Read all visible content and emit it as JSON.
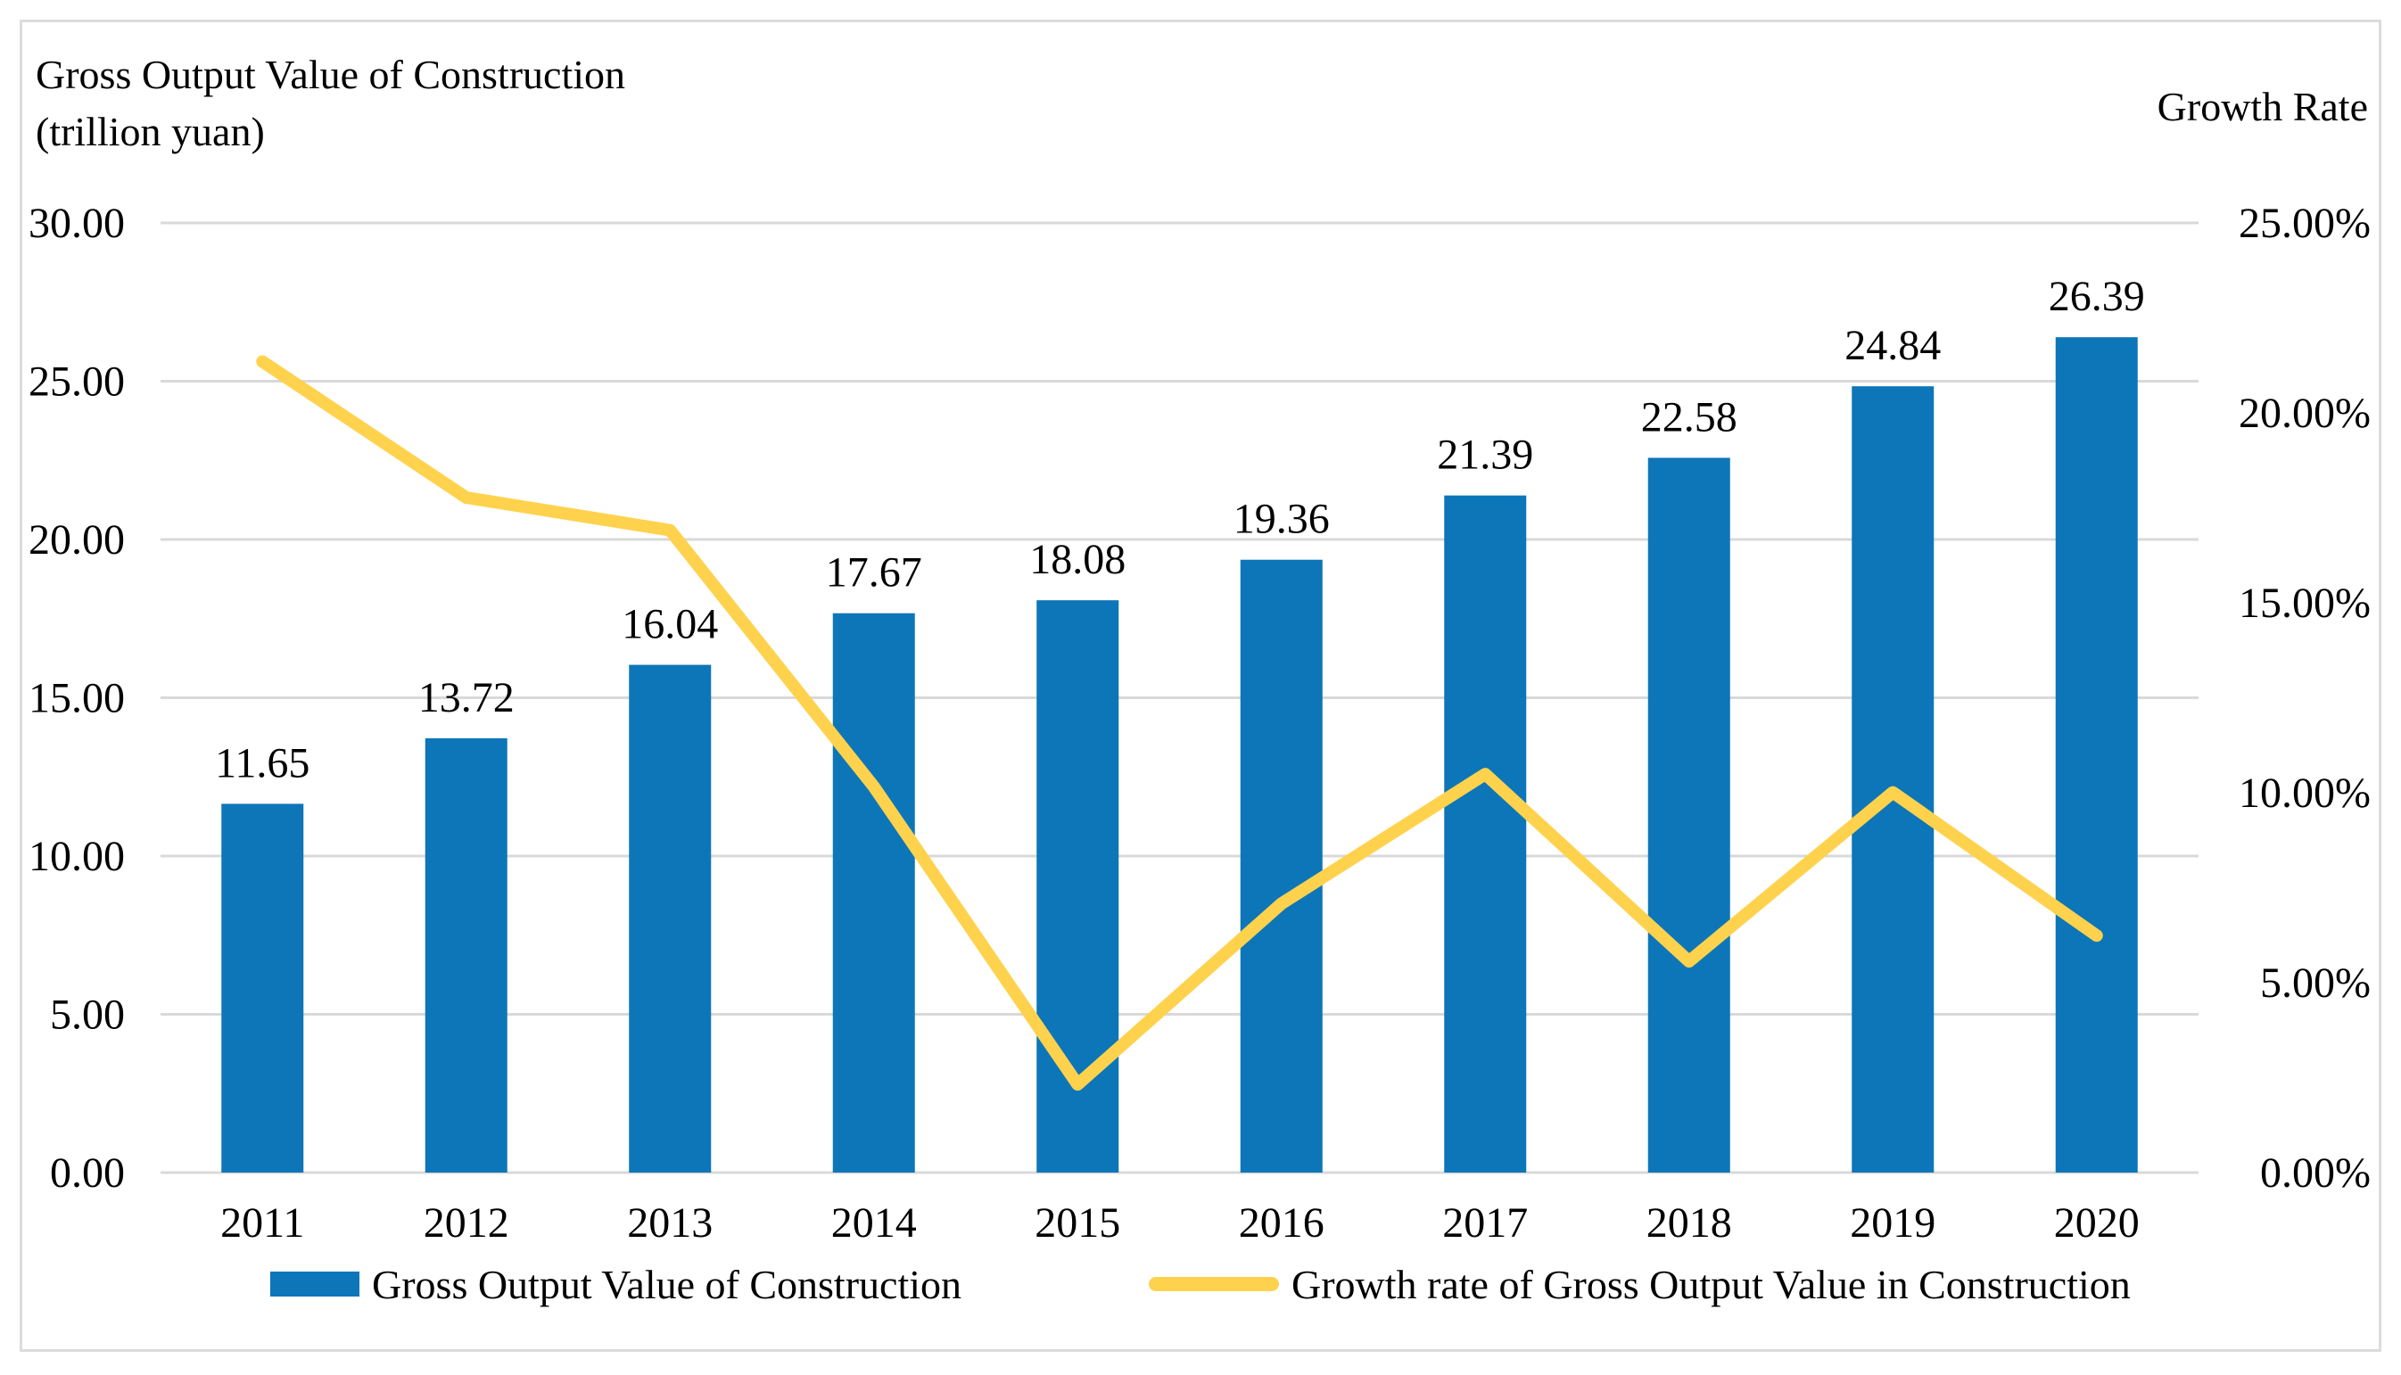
{
  "titles": {
    "left_axis_title_line1": "Gross Output Value of Construction",
    "left_axis_title_line2": "(trillion yuan)",
    "right_axis_title": "Growth Rate"
  },
  "chart_data": {
    "type": "combo-bar-line",
    "categories": [
      "2011",
      "2012",
      "2013",
      "2014",
      "2015",
      "2016",
      "2017",
      "2018",
      "2019",
      "2020"
    ],
    "series": [
      {
        "name": "Gross Output Value of Construction",
        "chart_type": "bar",
        "axis": "left",
        "color": "#0d76b8",
        "values": [
          11.65,
          13.72,
          16.04,
          17.67,
          18.08,
          19.36,
          21.39,
          22.58,
          24.84,
          26.39
        ],
        "data_labels": [
          "11.65",
          "13.72",
          "16.04",
          "17.67",
          "18.08",
          "19.36",
          "21.39",
          "22.58",
          "24.84",
          "26.39"
        ]
      },
      {
        "name": "Growth rate of Gross Output Value in Construction",
        "chart_type": "line",
        "axis": "right",
        "color": "#ffd24d",
        "values_percent": [
          21.35,
          17.77,
          16.91,
          10.16,
          2.32,
          7.08,
          10.49,
          5.56,
          10.01,
          6.24
        ]
      }
    ],
    "left_axis": {
      "label": "Gross Output Value of Construction (trillion yuan)",
      "min": 0,
      "max": 30,
      "step": 5,
      "tick_labels": [
        "30.00",
        "25.00",
        "20.00",
        "15.00",
        "10.00",
        "5.00",
        "0.00"
      ]
    },
    "right_axis": {
      "label": "Growth Rate",
      "min": 0,
      "max": 25,
      "step": 5,
      "tick_labels": [
        "25.00%",
        "20.00%",
        "15.00%",
        "10.00%",
        "5.00%",
        "0.00%"
      ]
    },
    "gridlines": true,
    "legend_position": "bottom"
  },
  "style": {
    "bar_color": "#0d76b8",
    "line_color": "#ffd24d",
    "grid_color": "#d9d9d9",
    "frame_color": "#dcdcdc",
    "text_color": "#000000"
  }
}
